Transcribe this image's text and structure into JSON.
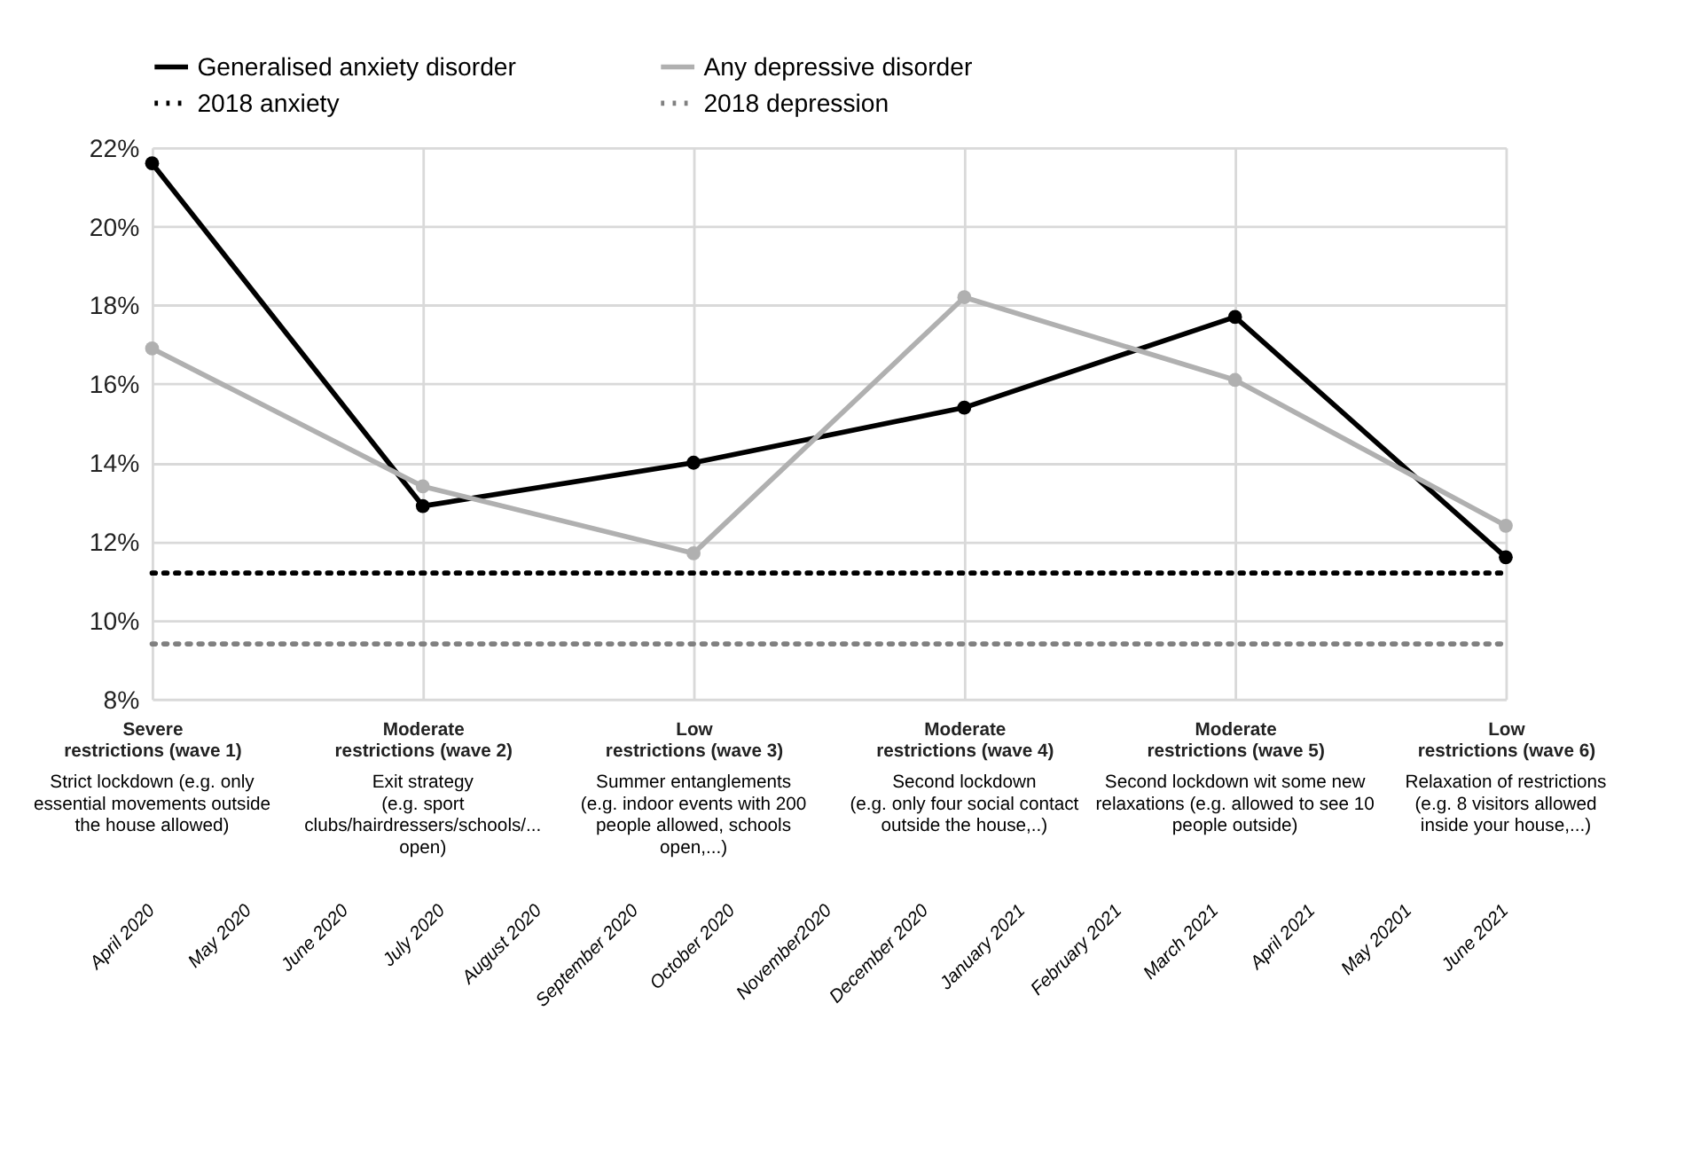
{
  "chart_data": {
    "type": "line",
    "categories": [
      "Severe\nrestrictions (wave 1)\nStrict lockdown (e.g. only\nessential movements outside\nthe house allowed)",
      "Moderate\nrestrictions (wave 2)\nExit strategy\n(e.g. sport\nclubs/hairdressers/schools/...\nopen)",
      "Low\nrestrictions (wave 3)\nSummer entanglements\n(e.g. indoor events with 200\npeople allowed, schools\nopen,...)",
      "Moderate\nrestrictions (wave 4)\nSecond lockdown\n(e.g. only four social contact\noutside the house,..)",
      "Moderate\nrestrictions (wave 5)\nSecond lockdown wit some new\nrelaxations (e.g. allowed to see 10\npeople outside)",
      "Low\nrestrictions (wave 6)\nRelaxation of restrictions\n(e.g. 8 visitors allowed\ninside your house,...)"
    ],
    "series": [
      {
        "name": "Generalised anxiety disorder",
        "color": "#000000",
        "values": [
          21.6,
          12.9,
          14.0,
          15.4,
          17.7,
          11.6
        ],
        "marker": "circle",
        "line_style": "solid"
      },
      {
        "name": "Any depressive disorder",
        "color": "#b0b0b0",
        "values": [
          16.9,
          13.4,
          11.7,
          18.2,
          16.1,
          12.4
        ],
        "marker": "circle",
        "line_style": "solid"
      },
      {
        "name": "2018 anxiety",
        "color": "#000000",
        "values": [
          11.2,
          11.2,
          11.2,
          11.2,
          11.2,
          11.2
        ],
        "marker": "none",
        "line_style": "dotted"
      },
      {
        "name": "2018 depression",
        "color": "#808080",
        "values": [
          9.4,
          9.4,
          9.4,
          9.4,
          9.4,
          9.4
        ],
        "marker": "none",
        "line_style": "dotted"
      }
    ],
    "ylim": [
      8,
      22
    ],
    "yticks": [
      {
        "value": 8,
        "label": "8%"
      },
      {
        "value": 10,
        "label": "10%"
      },
      {
        "value": 12,
        "label": "12%"
      },
      {
        "value": 14,
        "label": "14%"
      },
      {
        "value": 16,
        "label": "16%"
      },
      {
        "value": 18,
        "label": "18%"
      },
      {
        "value": 20,
        "label": "20%"
      },
      {
        "value": 22,
        "label": "22%"
      }
    ],
    "grid": true,
    "legend": "top",
    "annotations": [
      "April 2020",
      "May 2020",
      "June 2020",
      "July 2020",
      "August 2020",
      "September 2020",
      "October 2020",
      "November2020",
      "December 2020",
      "January 2021",
      "February 2021",
      "March 2021",
      "April 2021",
      "May 20201",
      "June 2021"
    ]
  }
}
